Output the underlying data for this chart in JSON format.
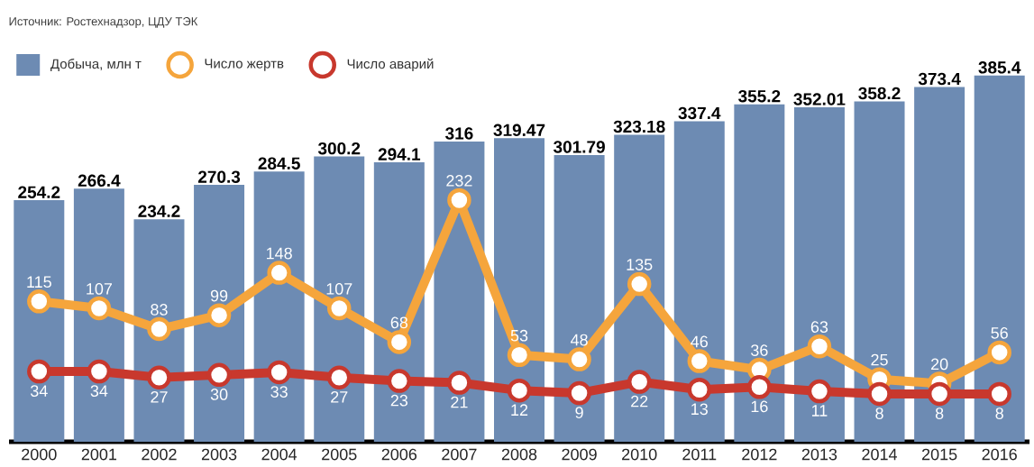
{
  "chart_data": {
    "type": "bar",
    "annotations": [
      "Источник: Ростехнадзор, ЦДУ ТЭК"
    ],
    "categories": [
      "2000",
      "2001",
      "2002",
      "2003",
      "2004",
      "2005",
      "2006",
      "2007",
      "2008",
      "2009",
      "2010",
      "2011",
      "2012",
      "2013",
      "2014",
      "2015",
      "2016"
    ],
    "series": [
      {
        "name": "Добыча, млн т",
        "color": "#6d8bb3",
        "values": [
          254.2,
          266.4,
          234.2,
          270.3,
          284.5,
          300.2,
          294.1,
          316,
          319.47,
          301.79,
          323.18,
          337.4,
          355.2,
          352.01,
          358.2,
          373.4,
          385.4
        ]
      },
      {
        "name": "Число жертв",
        "type": "line",
        "axis": "y2",
        "color": "#f5a53c",
        "values": [
          115,
          107,
          83,
          99,
          148,
          107,
          68,
          232,
          53,
          48,
          135,
          46,
          36,
          63,
          25,
          20,
          56
        ]
      },
      {
        "name": "Число аварий",
        "type": "line",
        "axis": "y2",
        "color": "#c8382d",
        "values": [
          34,
          34,
          27,
          30,
          33,
          27,
          23,
          21,
          12,
          9,
          22,
          13,
          16,
          11,
          8,
          8,
          8
        ]
      }
    ],
    "tick_labels": "x",
    "data_labels": true,
    "legend": "top left",
    "marker": "circle"
  }
}
